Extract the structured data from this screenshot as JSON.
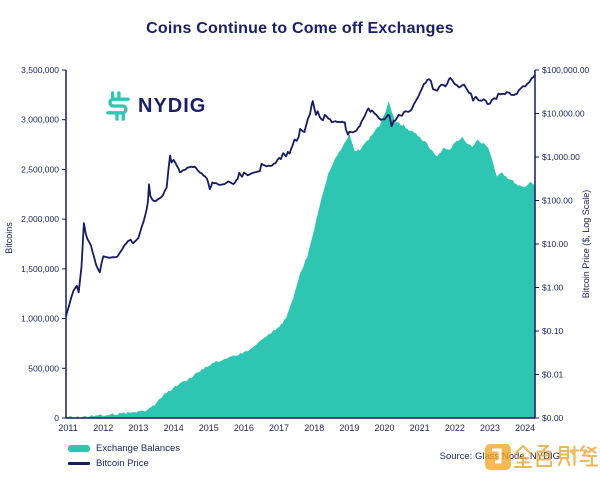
{
  "title": "Coins Continue to Come off Exchanges",
  "logo": {
    "brand": "NYDIG"
  },
  "legend": {
    "items": [
      {
        "label": "Exchange Balances",
        "swatch": "area",
        "color": "#2EC5B2"
      },
      {
        "label": "Bitcoin Price",
        "swatch": "line",
        "color": "#151C63"
      }
    ]
  },
  "source": {
    "text": "Source: Glass Node, NYDIG"
  },
  "watermark": {
    "text": "金色财经",
    "color": "#F2A71B"
  },
  "colors": {
    "navy": "#151C63",
    "teal": "#2EC5B2",
    "text": "#1B2159",
    "background": "#FFFFFF"
  },
  "chart_data": {
    "type": "area+line",
    "title": "Coins Continue to Come off Exchanges",
    "grid": "off",
    "legend_position": "bottom-left",
    "x_axis": {
      "ticks": [
        "2011",
        "2012",
        "2013",
        "2014",
        "2015",
        "2016",
        "2017",
        "2018",
        "2019",
        "2020",
        "2021",
        "2022",
        "2023",
        "2024"
      ],
      "range": [
        2010.94,
        2024.28
      ]
    },
    "left_axis": {
      "label": "Bitcoins",
      "ticks": [
        "0",
        "500,000",
        "1,000,000",
        "1,500,000",
        "2,000,000",
        "2,500,000",
        "3,000,000",
        "3,500,000"
      ],
      "range": [
        0,
        3500000
      ]
    },
    "right_axis": {
      "label": "Bitcoin Price ($, Log Scale)",
      "ticks": [
        "$0.00",
        "$0.01",
        "$0.10",
        "$1.00",
        "$10.00",
        "$100.00",
        "$1,000.00",
        "$10,000.00",
        "$100,000.00"
      ],
      "log10_range": [
        -3,
        5
      ]
    },
    "series": [
      {
        "name": "Exchange Balances",
        "type": "area",
        "axis": "left",
        "color": "#2EC5B2",
        "unit": "BTC",
        "points": [
          [
            2010.94,
            5000
          ],
          [
            2011.5,
            12000
          ],
          [
            2012.0,
            30000
          ],
          [
            2012.5,
            45000
          ],
          [
            2013.0,
            60000
          ],
          [
            2013.3,
            90000
          ],
          [
            2013.5,
            140000
          ],
          [
            2013.7,
            230000
          ],
          [
            2013.9,
            280000
          ],
          [
            2014.0,
            300000
          ],
          [
            2014.25,
            360000
          ],
          [
            2014.5,
            410000
          ],
          [
            2014.75,
            470000
          ],
          [
            2015.0,
            530000
          ],
          [
            2015.25,
            570000
          ],
          [
            2015.5,
            600000
          ],
          [
            2015.75,
            630000
          ],
          [
            2016.0,
            660000
          ],
          [
            2016.25,
            710000
          ],
          [
            2016.5,
            780000
          ],
          [
            2016.75,
            850000
          ],
          [
            2017.0,
            920000
          ],
          [
            2017.2,
            1000000
          ],
          [
            2017.4,
            1200000
          ],
          [
            2017.6,
            1450000
          ],
          [
            2017.8,
            1620000
          ],
          [
            2018.0,
            1900000
          ],
          [
            2018.2,
            2200000
          ],
          [
            2018.4,
            2450000
          ],
          [
            2018.6,
            2620000
          ],
          [
            2018.8,
            2720000
          ],
          [
            2019.0,
            2850000
          ],
          [
            2019.15,
            2680000
          ],
          [
            2019.3,
            2700000
          ],
          [
            2019.5,
            2780000
          ],
          [
            2019.7,
            2870000
          ],
          [
            2019.85,
            2940000
          ],
          [
            2020.0,
            3050000
          ],
          [
            2020.12,
            3180000
          ],
          [
            2020.2,
            3080000
          ],
          [
            2020.3,
            2980000
          ],
          [
            2020.5,
            2950000
          ],
          [
            2020.7,
            2900000
          ],
          [
            2020.9,
            2860000
          ],
          [
            2021.0,
            2830000
          ],
          [
            2021.2,
            2760000
          ],
          [
            2021.4,
            2660000
          ],
          [
            2021.5,
            2630000
          ],
          [
            2021.7,
            2720000
          ],
          [
            2021.85,
            2700000
          ],
          [
            2022.0,
            2770000
          ],
          [
            2022.2,
            2820000
          ],
          [
            2022.35,
            2760000
          ],
          [
            2022.5,
            2730000
          ],
          [
            2022.65,
            2790000
          ],
          [
            2022.8,
            2760000
          ],
          [
            2022.95,
            2720000
          ],
          [
            2023.05,
            2600000
          ],
          [
            2023.2,
            2430000
          ],
          [
            2023.35,
            2470000
          ],
          [
            2023.5,
            2400000
          ],
          [
            2023.65,
            2380000
          ],
          [
            2023.8,
            2340000
          ],
          [
            2024.0,
            2330000
          ],
          [
            2024.15,
            2370000
          ],
          [
            2024.28,
            2350000
          ]
        ]
      },
      {
        "name": "Bitcoin Price",
        "type": "line",
        "axis": "right",
        "color": "#151C63",
        "unit": "USD",
        "points": [
          [
            2010.94,
            0.22
          ],
          [
            2011.05,
            0.45
          ],
          [
            2011.15,
            0.85
          ],
          [
            2011.25,
            1.1
          ],
          [
            2011.3,
            0.75
          ],
          [
            2011.38,
            3
          ],
          [
            2011.45,
            30
          ],
          [
            2011.5,
            17
          ],
          [
            2011.55,
            13
          ],
          [
            2011.65,
            9
          ],
          [
            2011.8,
            3.2
          ],
          [
            2011.9,
            2.3
          ],
          [
            2012.0,
            5.4
          ],
          [
            2012.1,
            5.0
          ],
          [
            2012.25,
            4.9
          ],
          [
            2012.4,
            5.2
          ],
          [
            2012.5,
            6.7
          ],
          [
            2012.6,
            9.4
          ],
          [
            2012.7,
            11.5
          ],
          [
            2012.78,
            12.5
          ],
          [
            2012.85,
            10.4
          ],
          [
            2013.0,
            13.4
          ],
          [
            2013.1,
            25
          ],
          [
            2013.2,
            47
          ],
          [
            2013.27,
            90
          ],
          [
            2013.3,
            230
          ],
          [
            2013.34,
            130
          ],
          [
            2013.4,
            100
          ],
          [
            2013.5,
            97
          ],
          [
            2013.6,
            110
          ],
          [
            2013.7,
            135
          ],
          [
            2013.8,
            200
          ],
          [
            2013.86,
            600
          ],
          [
            2013.9,
            1120
          ],
          [
            2013.94,
            750
          ],
          [
            2014.0,
            840
          ],
          [
            2014.1,
            620
          ],
          [
            2014.18,
            450
          ],
          [
            2014.3,
            500
          ],
          [
            2014.42,
            590
          ],
          [
            2014.5,
            620
          ],
          [
            2014.6,
            585
          ],
          [
            2014.7,
            480
          ],
          [
            2014.85,
            380
          ],
          [
            2014.95,
            320
          ],
          [
            2015.03,
            180
          ],
          [
            2015.1,
            255
          ],
          [
            2015.2,
            245
          ],
          [
            2015.3,
            235
          ],
          [
            2015.45,
            240
          ],
          [
            2015.55,
            275
          ],
          [
            2015.7,
            235
          ],
          [
            2015.82,
            310
          ],
          [
            2015.87,
            425
          ],
          [
            2015.95,
            360
          ],
          [
            2016.0,
            432
          ],
          [
            2016.1,
            390
          ],
          [
            2016.2,
            418
          ],
          [
            2016.35,
            455
          ],
          [
            2016.45,
            460
          ],
          [
            2016.5,
            680
          ],
          [
            2016.55,
            655
          ],
          [
            2016.65,
            610
          ],
          [
            2016.8,
            640
          ],
          [
            2016.9,
            740
          ],
          [
            2017.0,
            970
          ],
          [
            2017.05,
            890
          ],
          [
            2017.12,
            1180
          ],
          [
            2017.2,
            1030
          ],
          [
            2017.25,
            1280
          ],
          [
            2017.3,
            1190
          ],
          [
            2017.38,
            1850
          ],
          [
            2017.44,
            2550
          ],
          [
            2017.5,
            2350
          ],
          [
            2017.56,
            2850
          ],
          [
            2017.6,
            4350
          ],
          [
            2017.66,
            3900
          ],
          [
            2017.72,
            3650
          ],
          [
            2017.78,
            5700
          ],
          [
            2017.82,
            7300
          ],
          [
            2017.88,
            9700
          ],
          [
            2017.93,
            16800
          ],
          [
            2017.96,
            19200
          ],
          [
            2018.0,
            13800
          ],
          [
            2018.05,
            9200
          ],
          [
            2018.1,
            11200
          ],
          [
            2018.16,
            8300
          ],
          [
            2018.25,
            7000
          ],
          [
            2018.3,
            9300
          ],
          [
            2018.36,
            8200
          ],
          [
            2018.45,
            7400
          ],
          [
            2018.5,
            6400
          ],
          [
            2018.6,
            6700
          ],
          [
            2018.7,
            6300
          ],
          [
            2018.8,
            6450
          ],
          [
            2018.87,
            6300
          ],
          [
            2018.9,
            4300
          ],
          [
            2018.96,
            3300
          ],
          [
            2019.0,
            3750
          ],
          [
            2019.1,
            3600
          ],
          [
            2019.2,
            4050
          ],
          [
            2019.3,
            5300
          ],
          [
            2019.38,
            7400
          ],
          [
            2019.44,
            8800
          ],
          [
            2019.5,
            11200
          ],
          [
            2019.54,
            13000
          ],
          [
            2019.6,
            10600
          ],
          [
            2019.64,
            11900
          ],
          [
            2019.72,
            10100
          ],
          [
            2019.8,
            8400
          ],
          [
            2019.9,
            7300
          ],
          [
            2020.0,
            7200
          ],
          [
            2020.1,
            9600
          ],
          [
            2020.14,
            8700
          ],
          [
            2020.2,
            5000
          ],
          [
            2020.26,
            6900
          ],
          [
            2020.33,
            7100
          ],
          [
            2020.4,
            9100
          ],
          [
            2020.5,
            9250
          ],
          [
            2020.6,
            11600
          ],
          [
            2020.68,
            10700
          ],
          [
            2020.78,
            13100
          ],
          [
            2020.88,
            18500
          ],
          [
            2020.95,
            24000
          ],
          [
            2021.0,
            29300
          ],
          [
            2021.06,
            38000
          ],
          [
            2021.12,
            47500
          ],
          [
            2021.17,
            50000
          ],
          [
            2021.22,
            58500
          ],
          [
            2021.27,
            63000
          ],
          [
            2021.32,
            54000
          ],
          [
            2021.38,
            37000
          ],
          [
            2021.44,
            34000
          ],
          [
            2021.5,
            33500
          ],
          [
            2021.56,
            42000
          ],
          [
            2021.62,
            47500
          ],
          [
            2021.68,
            44500
          ],
          [
            2021.73,
            43000
          ],
          [
            2021.78,
            48500
          ],
          [
            2021.83,
            61500
          ],
          [
            2021.87,
            67000
          ],
          [
            2021.93,
            57000
          ],
          [
            2022.0,
            47500
          ],
          [
            2022.06,
            43500
          ],
          [
            2022.12,
            38500
          ],
          [
            2022.2,
            42500
          ],
          [
            2022.26,
            46000
          ],
          [
            2022.32,
            39500
          ],
          [
            2022.4,
            30000
          ],
          [
            2022.46,
            29500
          ],
          [
            2022.52,
            20000
          ],
          [
            2022.6,
            23500
          ],
          [
            2022.68,
            20000
          ],
          [
            2022.76,
            19600
          ],
          [
            2022.82,
            20600
          ],
          [
            2022.88,
            19200
          ],
          [
            2022.93,
            16600
          ],
          [
            2023.0,
            16700
          ],
          [
            2023.06,
            21500
          ],
          [
            2023.12,
            23200
          ],
          [
            2023.18,
            22000
          ],
          [
            2023.24,
            28300
          ],
          [
            2023.3,
            27300
          ],
          [
            2023.36,
            29200
          ],
          [
            2023.42,
            27600
          ],
          [
            2023.48,
            30600
          ],
          [
            2023.55,
            29600
          ],
          [
            2023.6,
            26200
          ],
          [
            2023.68,
            26600
          ],
          [
            2023.76,
            27000
          ],
          [
            2023.82,
            34500
          ],
          [
            2023.88,
            37500
          ],
          [
            2023.94,
            42800
          ],
          [
            2024.0,
            42500
          ],
          [
            2024.06,
            48500
          ],
          [
            2024.12,
            52000
          ],
          [
            2024.18,
            62500
          ],
          [
            2024.24,
            70000
          ],
          [
            2024.28,
            78000
          ]
        ]
      }
    ]
  }
}
